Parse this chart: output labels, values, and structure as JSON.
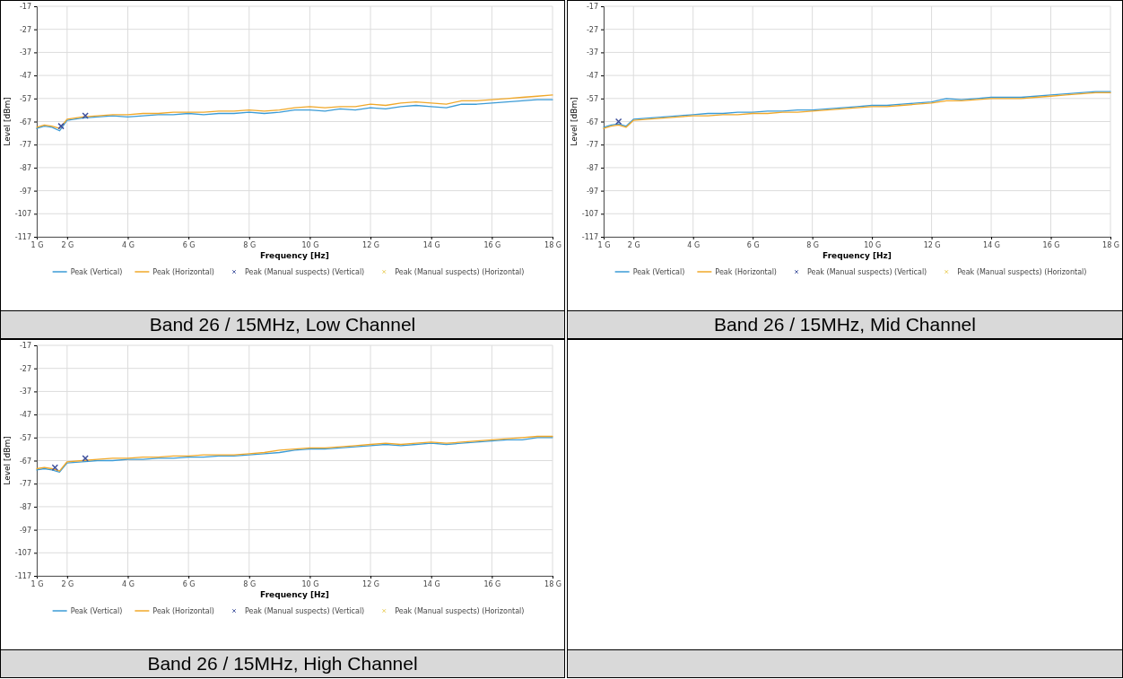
{
  "chart_data": [
    {
      "type": "line",
      "title": "Band 26 / 15MHz, Low Channel",
      "xlabel": "Frequency [Hz]",
      "ylabel": "Level [dBm]",
      "xlim": [
        1,
        18
      ],
      "ylim": [
        -117,
        -17
      ],
      "xticks": [
        {
          "value": 1,
          "label": "1 G"
        },
        {
          "value": 2,
          "label": "2 G"
        },
        {
          "value": 4,
          "label": "4 G"
        },
        {
          "value": 6,
          "label": "6 G"
        },
        {
          "value": 8,
          "label": "8 G"
        },
        {
          "value": 10,
          "label": "10 G"
        },
        {
          "value": 12,
          "label": "12 G"
        },
        {
          "value": 14,
          "label": "14 G"
        },
        {
          "value": 16,
          "label": "16 G"
        },
        {
          "value": 18,
          "label": "18 G"
        }
      ],
      "yticks": [
        -117,
        -107,
        -97,
        -87,
        -77,
        -67,
        -57,
        -47,
        -37,
        -27,
        -17
      ],
      "grid": true,
      "legend": "bottom",
      "x": [
        1,
        1.25,
        1.5,
        1.75,
        2,
        2.5,
        3,
        3.5,
        4,
        4.5,
        5,
        5.5,
        6,
        6.5,
        7,
        7.5,
        8,
        8.5,
        9,
        9.5,
        10,
        10.5,
        11,
        11.5,
        12,
        12.5,
        13,
        13.5,
        14,
        14.5,
        15,
        15.5,
        16,
        16.5,
        17,
        17.5,
        18
      ],
      "series": [
        {
          "name": "Peak (Vertical)",
          "color": "#3b9bd6",
          "values": [
            -70,
            -69,
            -69.5,
            -71,
            -66.5,
            -65.5,
            -65,
            -64.5,
            -65,
            -64.5,
            -64,
            -64,
            -63.5,
            -64,
            -63.5,
            -63.5,
            -63,
            -63.5,
            -63,
            -62,
            -62,
            -62.5,
            -61.5,
            -62,
            -61,
            -61.5,
            -60.5,
            -60,
            -60.5,
            -61,
            -59.5,
            -59.5,
            -59,
            -58.5,
            -58,
            -57.5,
            -57.5
          ]
        },
        {
          "name": "Peak (Horizontal)",
          "color": "#f0a82a",
          "values": [
            -69.5,
            -68.5,
            -69,
            -70,
            -66,
            -65,
            -64.5,
            -64,
            -64,
            -63.5,
            -63.5,
            -63,
            -63,
            -63,
            -62.5,
            -62.5,
            -62,
            -62.5,
            -62,
            -61,
            -60.5,
            -61,
            -60.5,
            -60.5,
            -59.5,
            -60,
            -59,
            -58.5,
            -59,
            -59.5,
            -58,
            -58,
            -57.5,
            -57,
            -56.5,
            -56,
            -55.5
          ]
        },
        {
          "name": "Peak (Manual suspects) (Vertical)",
          "type": "scatter",
          "marker": "cross",
          "color": "#3d4f9c",
          "x": [
            1.8,
            2.6
          ],
          "values": [
            -69,
            -64.5
          ]
        },
        {
          "name": "Peak (Manual suspects) (Horizontal)",
          "type": "scatter",
          "marker": "cross",
          "color": "#e8c84a",
          "values": [
            null,
            null,
            null,
            null,
            null,
            null,
            null,
            null,
            null,
            null,
            null,
            null,
            null,
            null,
            null,
            null,
            null,
            null,
            null,
            null,
            null,
            null,
            null,
            null,
            null,
            null,
            null,
            null,
            null,
            null,
            null,
            null,
            null,
            null,
            null,
            null,
            null
          ]
        }
      ]
    },
    {
      "type": "line",
      "title": "Band 26 / 15MHz, Mid Channel",
      "xlabel": "Frequency [Hz]",
      "ylabel": "Level [dBm]",
      "xlim": [
        1,
        18
      ],
      "ylim": [
        -117,
        -17
      ],
      "xticks": [
        {
          "value": 1,
          "label": "1 G"
        },
        {
          "value": 2,
          "label": "2 G"
        },
        {
          "value": 4,
          "label": "4 G"
        },
        {
          "value": 6,
          "label": "6 G"
        },
        {
          "value": 8,
          "label": "8 G"
        },
        {
          "value": 10,
          "label": "10 G"
        },
        {
          "value": 12,
          "label": "12 G"
        },
        {
          "value": 14,
          "label": "14 G"
        },
        {
          "value": 16,
          "label": "16 G"
        },
        {
          "value": 18,
          "label": "18 G"
        }
      ],
      "yticks": [
        -117,
        -107,
        -97,
        -87,
        -77,
        -67,
        -57,
        -47,
        -37,
        -27,
        -17
      ],
      "grid": true,
      "legend": "bottom",
      "x": [
        1,
        1.25,
        1.5,
        1.75,
        2,
        2.5,
        3,
        3.5,
        4,
        4.5,
        5,
        5.5,
        6,
        6.5,
        7,
        7.5,
        8,
        8.5,
        9,
        9.5,
        10,
        10.5,
        11,
        11.5,
        12,
        12.5,
        13,
        13.5,
        14,
        14.5,
        15,
        15.5,
        16,
        16.5,
        17,
        17.5,
        18
      ],
      "series": [
        {
          "name": "Peak (Vertical)",
          "color": "#3b9bd6",
          "values": [
            -69.5,
            -68.5,
            -68,
            -69,
            -66,
            -65.5,
            -65,
            -64.5,
            -64,
            -63.5,
            -63.5,
            -63,
            -63,
            -62.5,
            -62.5,
            -62,
            -62,
            -61.5,
            -61,
            -60.5,
            -60,
            -60,
            -59.5,
            -59,
            -58.5,
            -57,
            -57.5,
            -57,
            -56.5,
            -56.5,
            -56.5,
            -56,
            -55.5,
            -55,
            -54.5,
            -54,
            -54
          ]
        },
        {
          "name": "Peak (Horizontal)",
          "color": "#f0a82a",
          "values": [
            -70,
            -69,
            -68.5,
            -69.5,
            -66.5,
            -66,
            -65.5,
            -65,
            -64.5,
            -64.5,
            -64,
            -64,
            -63.5,
            -63.5,
            -63,
            -63,
            -62.5,
            -62,
            -61.5,
            -61,
            -60.5,
            -60.5,
            -60,
            -59.5,
            -59,
            -58,
            -58,
            -57.5,
            -57,
            -57,
            -57,
            -56.5,
            -56,
            -55.5,
            -55,
            -54.5,
            -54.5
          ]
        },
        {
          "name": "Peak (Manual suspects) (Vertical)",
          "type": "scatter",
          "marker": "cross",
          "color": "#3d4f9c",
          "x": [
            1.5
          ],
          "values": [
            -67
          ]
        },
        {
          "name": "Peak (Manual suspects) (Horizontal)",
          "type": "scatter",
          "marker": "cross",
          "color": "#e8c84a",
          "values": [
            null,
            null,
            null,
            null,
            null,
            null,
            null,
            null,
            null,
            null,
            null,
            null,
            null,
            null,
            null,
            null,
            null,
            null,
            null,
            null,
            null,
            null,
            null,
            null,
            null,
            null,
            null,
            null,
            null,
            null,
            null,
            null,
            null,
            null,
            null,
            null,
            null
          ]
        }
      ]
    },
    {
      "type": "line",
      "title": "Band 26 / 15MHz, High Channel",
      "xlabel": "Frequency [Hz]",
      "ylabel": "Level [dBm]",
      "xlim": [
        1,
        18
      ],
      "ylim": [
        -117,
        -17
      ],
      "xticks": [
        {
          "value": 1,
          "label": "1 G"
        },
        {
          "value": 2,
          "label": "2 G"
        },
        {
          "value": 4,
          "label": "4 G"
        },
        {
          "value": 6,
          "label": "6 G"
        },
        {
          "value": 8,
          "label": "8 G"
        },
        {
          "value": 10,
          "label": "10 G"
        },
        {
          "value": 12,
          "label": "12 G"
        },
        {
          "value": 14,
          "label": "14 G"
        },
        {
          "value": 16,
          "label": "16 G"
        },
        {
          "value": 18,
          "label": "18 G"
        }
      ],
      "yticks": [
        -117,
        -107,
        -97,
        -87,
        -77,
        -67,
        -57,
        -47,
        -37,
        -27,
        -17
      ],
      "grid": true,
      "legend": "bottom",
      "x": [
        1,
        1.25,
        1.5,
        1.75,
        2,
        2.5,
        3,
        3.5,
        4,
        4.5,
        5,
        5.5,
        6,
        6.5,
        7,
        7.5,
        8,
        8.5,
        9,
        9.5,
        10,
        10.5,
        11,
        11.5,
        12,
        12.5,
        13,
        13.5,
        14,
        14.5,
        15,
        15.5,
        16,
        16.5,
        17,
        17.5,
        18
      ],
      "series": [
        {
          "name": "Peak (Vertical)",
          "color": "#3b9bd6",
          "values": [
            -71,
            -70.5,
            -71,
            -72,
            -68,
            -67.5,
            -67,
            -67,
            -66.5,
            -66.5,
            -66,
            -66,
            -65.5,
            -65.5,
            -65,
            -65,
            -64.5,
            -64,
            -63.5,
            -62.5,
            -62,
            -62,
            -61.5,
            -61,
            -60.5,
            -60,
            -60.5,
            -60,
            -59.5,
            -60,
            -59.5,
            -59,
            -58.5,
            -58,
            -58,
            -57,
            -57
          ]
        },
        {
          "name": "Peak (Horizontal)",
          "color": "#f0a82a",
          "values": [
            -70.5,
            -70,
            -70.5,
            -71.5,
            -67.5,
            -67,
            -66.5,
            -66,
            -66,
            -65.5,
            -65.5,
            -65,
            -65,
            -64.5,
            -64.5,
            -64.5,
            -64,
            -63.5,
            -62.5,
            -62,
            -61.5,
            -61.5,
            -61,
            -60.5,
            -60,
            -59.5,
            -60,
            -59.5,
            -59,
            -59.5,
            -59,
            -58.5,
            -58,
            -57.5,
            -57,
            -56.5,
            -56.5
          ]
        },
        {
          "name": "Peak (Manual suspects) (Vertical)",
          "type": "scatter",
          "marker": "cross",
          "color": "#3d4f9c",
          "x": [
            1.6,
            2.6
          ],
          "values": [
            -70,
            -66
          ]
        },
        {
          "name": "Peak (Manual suspects) (Horizontal)",
          "type": "scatter",
          "marker": "cross",
          "color": "#e8c84a",
          "values": [
            null,
            null,
            null,
            null,
            null,
            null,
            null,
            null,
            null,
            null,
            null,
            null,
            null,
            null,
            null,
            null,
            null,
            null,
            null,
            null,
            null,
            null,
            null,
            null,
            null,
            null,
            null,
            null,
            null,
            null,
            null,
            null,
            null,
            null,
            null,
            null,
            null
          ]
        }
      ]
    }
  ]
}
